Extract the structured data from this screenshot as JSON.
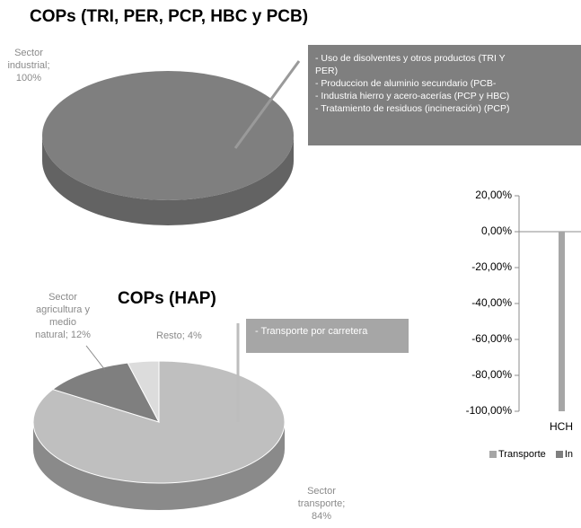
{
  "chart_data": [
    {
      "type": "pie",
      "title": "COPs (TRI, PER, PCP, HBC y PCB)",
      "slices": [
        {
          "label": "Sector industrial",
          "value": 100,
          "display": "Sector industrial; 100%",
          "label_lines": [
            "Sector",
            "industrial;",
            "100%"
          ],
          "color": "#7f7f7f"
        }
      ],
      "callout": {
        "lines": [
          "- Uso de disolventes y otros productos (TRI Y",
          "PER)",
          "- Produccion  de aluminio secundario (PCB-",
          "- Industria hierro y acero-acerías (PCP y HBC)",
          "- Tratamiento de residuos (incineración) (PCP)"
        ],
        "color": "#7f7f7f"
      }
    },
    {
      "type": "pie",
      "title": "COPs (HAP)",
      "slices": [
        {
          "label": "Sector transporte",
          "value": 84,
          "display": "Sector transporte; 84%",
          "label_lines": [
            "Sector",
            "transporte;",
            "84%"
          ],
          "color": "#bfbfbf"
        },
        {
          "label": "Sector agricultura y medio natural",
          "value": 12,
          "display": "Sector agricultura y medio natural; 12%",
          "label_lines": [
            "Sector",
            "agricultura y",
            "medio",
            "natural; 12%"
          ],
          "color": "#7f7f7f"
        },
        {
          "label": "Resto",
          "value": 4,
          "display": "Resto; 4%",
          "label_lines": [
            "Resto; 4%"
          ],
          "color": "#dcdcdc"
        }
      ],
      "callout": {
        "lines": [
          "- Transporte por carretera"
        ],
        "color": "#a6a6a6"
      }
    },
    {
      "type": "bar",
      "categories": [
        "HCH"
      ],
      "series": [
        {
          "name": "Transporte",
          "values": [
            -100
          ],
          "color": "#a6a6a6"
        },
        {
          "name": "In",
          "values": [
            null
          ],
          "color": "#7f7f7f"
        }
      ],
      "yticks": [
        "20,00%",
        "0,00%",
        "-20,00%",
        "-40,00%",
        "-60,00%",
        "-80,00%",
        "-100,00%"
      ],
      "ylim": [
        -100,
        20
      ],
      "legend": "bottom"
    }
  ]
}
